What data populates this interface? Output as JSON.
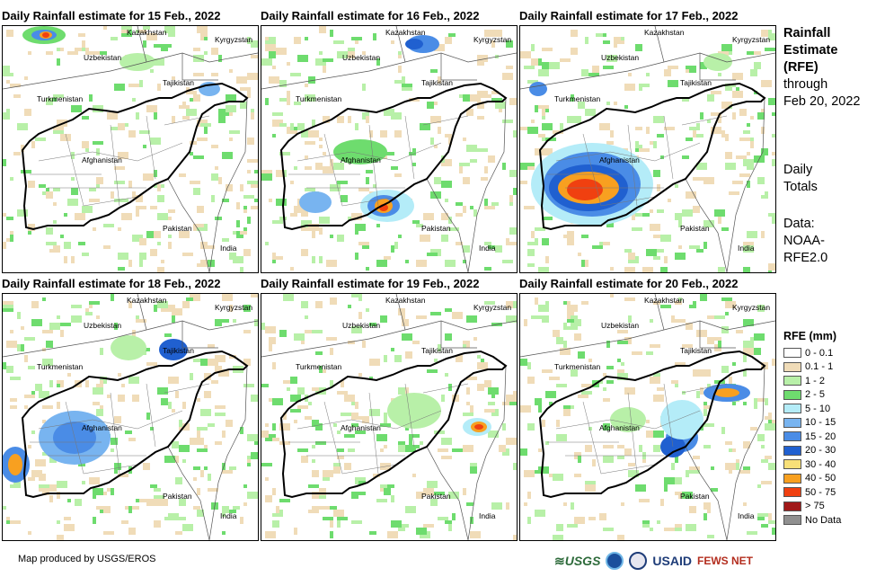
{
  "panels": [
    {
      "title": "Daily Rainfall estimate for 15 Feb., 2022"
    },
    {
      "title": "Daily Rainfall estimate for 16 Feb., 2022"
    },
    {
      "title": "Daily Rainfall estimate for 17 Feb., 2022"
    },
    {
      "title": "Daily Rainfall estimate for 18 Feb., 2022"
    },
    {
      "title": "Daily Rainfall estimate for 19 Feb., 2022"
    },
    {
      "title": "Daily Rainfall estimate for 20 Feb., 2022"
    }
  ],
  "map_labels": {
    "kazakhstan": "Kazakhstan",
    "uzbekistan": "Uzbekistan",
    "kyrgyzstan": "Kyrgyzstan",
    "tajikistan": "Tajikistan",
    "turkmenistan": "Turkmenistan",
    "afghanistan": "Afghanistan",
    "pakistan": "Pakistan",
    "india": "India"
  },
  "side": {
    "title_line1": "Rainfall",
    "title_line2": "Estimate",
    "title_line3": "(RFE)",
    "through_line1": "through",
    "through_line2": "Feb 20, 2022",
    "daily_line1": "Daily",
    "daily_line2": "Totals",
    "data_line1": "Data:",
    "data_line2": "NOAA-",
    "data_line3": "RFE2.0"
  },
  "legend": {
    "title": "RFE (mm)",
    "items": [
      {
        "label": "0 - 0.1",
        "color": "#ffffff"
      },
      {
        "label": "0.1 - 1",
        "color": "#f0dcb8"
      },
      {
        "label": "1 - 2",
        "color": "#b8f0a8"
      },
      {
        "label": "2 - 5",
        "color": "#6edc6e"
      },
      {
        "label": "5 - 10",
        "color": "#b4ecf8"
      },
      {
        "label": "10 - 15",
        "color": "#78b4f0"
      },
      {
        "label": "15 - 20",
        "color": "#4a8ce6"
      },
      {
        "label": "20 - 30",
        "color": "#2060d0"
      },
      {
        "label": "30 - 40",
        "color": "#f8e078"
      },
      {
        "label": "40 - 50",
        "color": "#f8a020"
      },
      {
        "label": "50 - 75",
        "color": "#f04010"
      },
      {
        "label": "> 75",
        "color": "#a01818"
      },
      {
        "label": "No Data",
        "color": "#909090"
      }
    ]
  },
  "footer": {
    "credit": "Map produced by USGS/EROS"
  },
  "logos": {
    "usgs": "USGS",
    "usaid": "USAID",
    "fewsnet": "FEWS NET"
  }
}
